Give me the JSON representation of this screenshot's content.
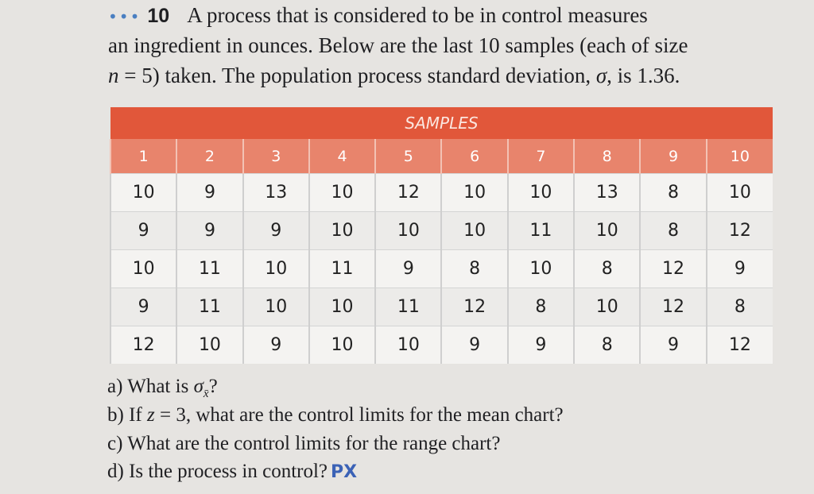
{
  "problem": {
    "dots": "•••",
    "number": "10",
    "line1": "A process that is considered to be in control measures",
    "line2": "an ingredient in ounces. Below are the last 10 samples (each of size",
    "line3": [
      "n",
      " = 5) taken. The population process standard deviation, ",
      "σ",
      ", is 1.36."
    ]
  },
  "table": {
    "caption": "SAMPLES",
    "headers": [
      "1",
      "2",
      "3",
      "4",
      "5",
      "6",
      "7",
      "8",
      "9",
      "10"
    ],
    "rows": [
      [
        10,
        9,
        13,
        10,
        12,
        10,
        10,
        13,
        8,
        10
      ],
      [
        9,
        9,
        9,
        10,
        10,
        10,
        11,
        10,
        8,
        12
      ],
      [
        10,
        11,
        10,
        11,
        9,
        8,
        10,
        8,
        12,
        9
      ],
      [
        9,
        11,
        10,
        10,
        11,
        12,
        8,
        10,
        12,
        8
      ],
      [
        12,
        10,
        9,
        10,
        10,
        9,
        9,
        8,
        9,
        12
      ]
    ]
  },
  "questions": [
    {
      "label": "a)",
      "text": "What is ",
      "symbol": "σ",
      "subscript": "x̄",
      "end": "?"
    },
    {
      "label": "b)",
      "text": "If ",
      "symbol": "z",
      "end": " = 3, what are the control limits for the mean chart?"
    },
    {
      "label": "c)",
      "text": "What are the control limits for the range chart?"
    },
    {
      "label": "d)",
      "text": "Is the process in control?",
      "logo": "PX"
    }
  ]
}
